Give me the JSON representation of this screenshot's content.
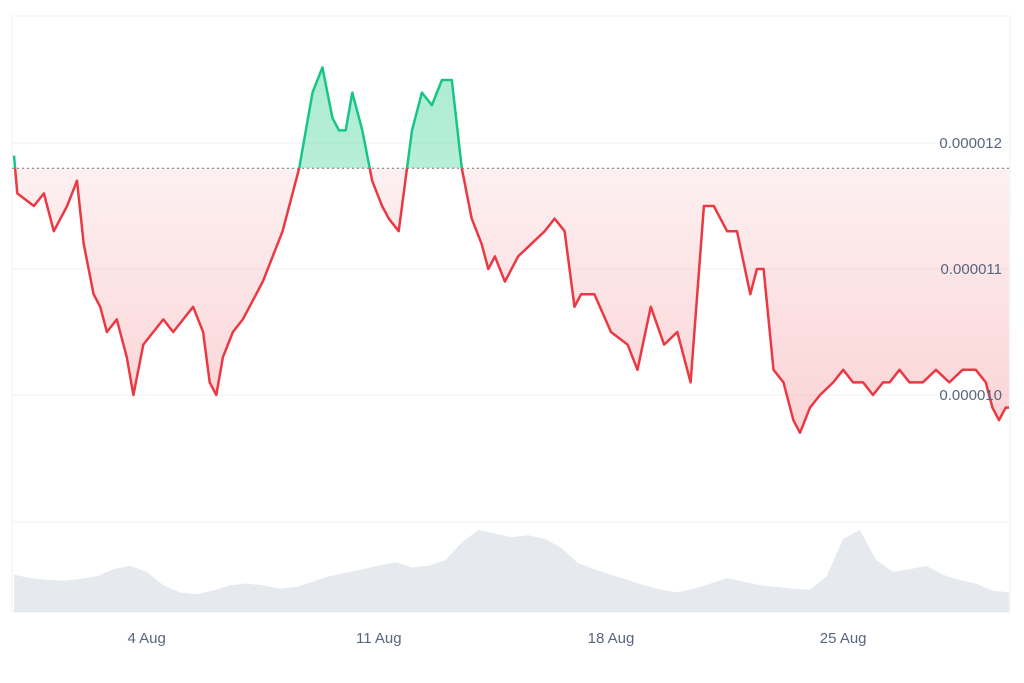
{
  "chart_data": {
    "type": "area",
    "title": "",
    "xlabel": "",
    "ylabel": "",
    "baseline": 1.18e-05,
    "ylim": [
      9e-06,
      1.31e-05
    ],
    "y_ticks": [
      {
        "value": 1.2e-05,
        "label": "0.000012"
      },
      {
        "value": 1.1e-05,
        "label": "0.000011"
      },
      {
        "value": 1e-05,
        "label": "0.000010"
      }
    ],
    "x_range": [
      0,
      30
    ],
    "x_ticks": [
      {
        "x": 4,
        "label": "4 Aug"
      },
      {
        "x": 11,
        "label": "11 Aug"
      },
      {
        "x": 18,
        "label": "18 Aug"
      },
      {
        "x": 25,
        "label": "25 Aug"
      }
    ],
    "up_color": "#16c784",
    "down_color": "#ea3943",
    "series": [
      {
        "x": [
          0,
          0.1,
          0.6,
          0.9,
          1.2,
          1.6,
          1.9,
          2.1,
          2.4,
          2.6,
          2.8,
          3.1,
          3.4,
          3.6,
          3.9,
          4.2,
          4.5,
          4.8,
          5.1,
          5.4,
          5.7,
          5.9,
          6.1,
          6.3,
          6.6,
          6.9,
          7.1,
          7.5,
          7.8,
          8.1,
          8.6,
          9.0,
          9.3,
          9.6,
          9.8,
          10.0,
          10.2,
          10.5,
          10.8,
          11.1,
          11.3,
          11.6,
          12.0,
          12.3,
          12.6,
          12.9,
          13.2,
          13.5,
          13.8,
          14.1,
          14.3,
          14.5,
          14.8,
          15.2,
          15.6,
          16.0,
          16.3,
          16.6,
          16.9,
          17.1,
          17.5,
          18.0,
          18.5,
          18.8,
          19.2,
          19.6,
          20.0,
          20.4,
          20.8,
          21.1,
          21.5,
          21.8,
          22.2,
          22.4,
          22.6,
          22.9,
          23.2,
          23.5,
          23.7,
          24.0,
          24.3,
          24.7,
          25.0,
          25.3,
          25.6,
          25.9,
          26.2,
          26.4,
          26.7,
          27.0,
          27.4,
          27.8,
          28.2,
          28.6,
          29.0,
          29.3,
          29.5,
          29.7,
          29.9,
          30.0
        ],
        "y": [
          1.19e-05,
          1.16e-05,
          1.15e-05,
          1.16e-05,
          1.13e-05,
          1.15e-05,
          1.17e-05,
          1.12e-05,
          1.08e-05,
          1.07e-05,
          1.05e-05,
          1.06e-05,
          1.03e-05,
          1e-05,
          1.04e-05,
          1.05e-05,
          1.06e-05,
          1.05e-05,
          1.06e-05,
          1.07e-05,
          1.05e-05,
          1.01e-05,
          1e-05,
          1.03e-05,
          1.05e-05,
          1.06e-05,
          1.07e-05,
          1.09e-05,
          1.11e-05,
          1.13e-05,
          1.18e-05,
          1.24e-05,
          1.26e-05,
          1.22e-05,
          1.21e-05,
          1.21e-05,
          1.24e-05,
          1.21e-05,
          1.17e-05,
          1.15e-05,
          1.14e-05,
          1.13e-05,
          1.21e-05,
          1.24e-05,
          1.23e-05,
          1.25e-05,
          1.25e-05,
          1.18e-05,
          1.14e-05,
          1.12e-05,
          1.1e-05,
          1.11e-05,
          1.09e-05,
          1.11e-05,
          1.12e-05,
          1.13e-05,
          1.14e-05,
          1.13e-05,
          1.07e-05,
          1.08e-05,
          1.08e-05,
          1.05e-05,
          1.04e-05,
          1.02e-05,
          1.07e-05,
          1.04e-05,
          1.05e-05,
          1.01e-05,
          1.15e-05,
          1.15e-05,
          1.13e-05,
          1.13e-05,
          1.08e-05,
          1.1e-05,
          1.1e-05,
          1.02e-05,
          1.01e-05,
          9.8e-06,
          9.7e-06,
          9.9e-06,
          1e-05,
          1.01e-05,
          1.02e-05,
          1.01e-05,
          1.01e-05,
          1e-05,
          1.01e-05,
          1.01e-05,
          1.02e-05,
          1.01e-05,
          1.01e-05,
          1.02e-05,
          1.01e-05,
          1.02e-05,
          1.02e-05,
          1.01e-05,
          9.9e-06,
          9.8e-06,
          9.9e-06,
          9.9e-06
        ]
      }
    ],
    "volume": {
      "x": [
        0,
        0.5,
        1,
        1.5,
        2,
        2.5,
        3,
        3.5,
        4,
        4.5,
        5,
        5.5,
        6,
        6.5,
        7,
        7.5,
        8,
        8.5,
        9,
        9.5,
        10,
        10.5,
        11,
        11.5,
        12,
        12.5,
        13,
        13.5,
        14,
        14.5,
        15,
        15.5,
        16,
        16.5,
        17,
        17.5,
        18,
        18.5,
        19,
        19.5,
        20,
        20.5,
        21,
        21.5,
        22,
        22.5,
        23,
        23.5,
        24,
        24.5,
        25,
        25.5,
        26,
        26.5,
        27,
        27.5,
        28,
        28.5,
        29,
        29.5,
        30
      ],
      "values": [
        0.42,
        0.38,
        0.36,
        0.35,
        0.37,
        0.4,
        0.48,
        0.52,
        0.45,
        0.3,
        0.22,
        0.2,
        0.24,
        0.3,
        0.32,
        0.3,
        0.26,
        0.28,
        0.34,
        0.4,
        0.44,
        0.48,
        0.52,
        0.56,
        0.5,
        0.52,
        0.58,
        0.78,
        0.92,
        0.88,
        0.84,
        0.86,
        0.82,
        0.72,
        0.55,
        0.48,
        0.42,
        0.36,
        0.3,
        0.25,
        0.22,
        0.26,
        0.32,
        0.38,
        0.34,
        0.3,
        0.28,
        0.26,
        0.25,
        0.4,
        0.82,
        0.92,
        0.58,
        0.45,
        0.48,
        0.52,
        0.42,
        0.36,
        0.32,
        0.24,
        0.22
      ]
    }
  }
}
